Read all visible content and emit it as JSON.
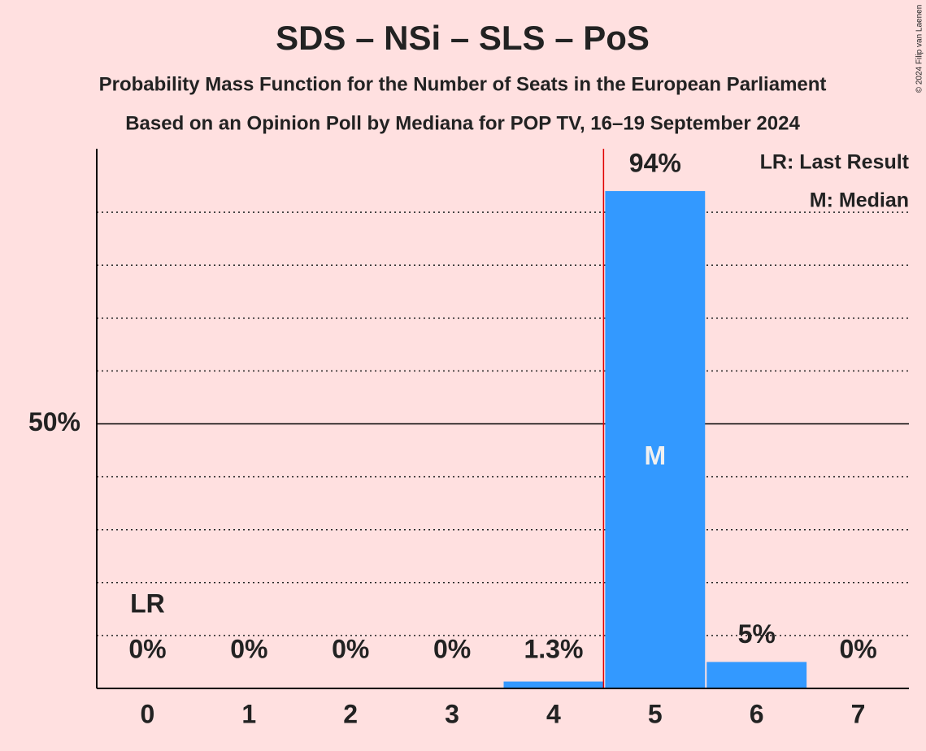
{
  "chart_data": {
    "type": "bar",
    "title": "SDS – NSi – SLS – PoS",
    "subtitle": "Probability Mass Function for the Number of Seats in the European Parliament",
    "subtitle2": "Based on an Opinion Poll by Mediana for POP TV, 16–19 September 2024",
    "categories": [
      "0",
      "1",
      "2",
      "3",
      "4",
      "5",
      "6",
      "7"
    ],
    "values": [
      0,
      0,
      0,
      0,
      1.3,
      94,
      5,
      0
    ],
    "value_labels": [
      "0%",
      "0%",
      "0%",
      "0%",
      "1.3%",
      "94%",
      "5%",
      "0%"
    ],
    "color": "#3399ff",
    "ylim": [
      0,
      102
    ],
    "yticks": [
      {
        "value": 50,
        "label": "50%"
      }
    ],
    "minor_yticks": [
      10,
      20,
      30,
      40,
      60,
      70,
      80,
      90
    ],
    "last_result": {
      "index": 0,
      "label": "LR"
    },
    "median": {
      "index": 5,
      "label": "M"
    },
    "legend": [
      "LR: Last Result",
      "M: Median"
    ],
    "copyright": "© 2024 Filip van Laenen"
  }
}
